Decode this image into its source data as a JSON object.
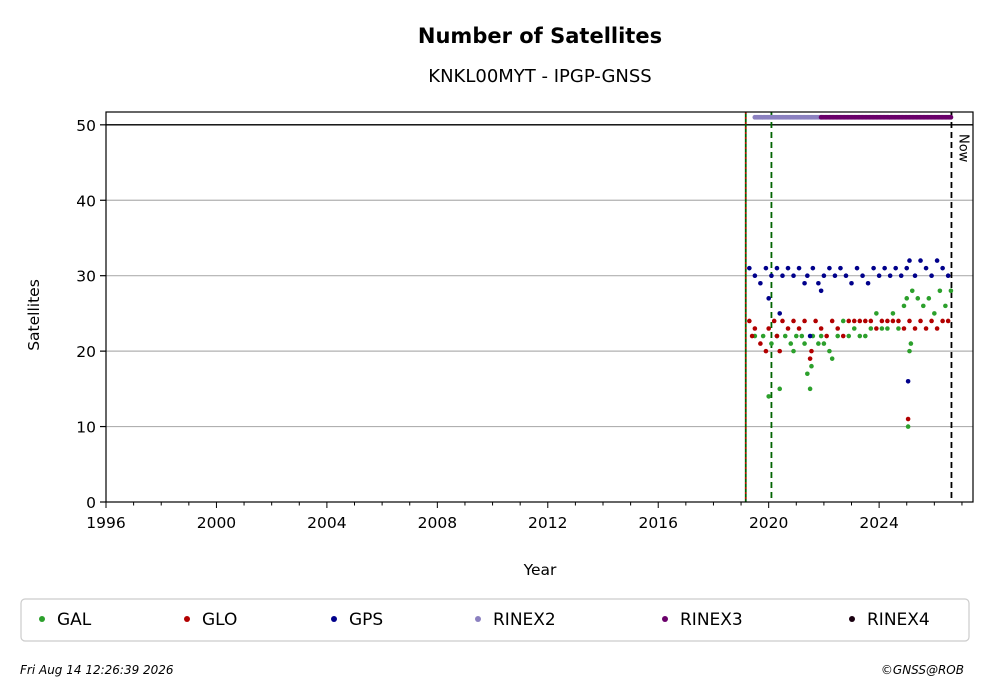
{
  "chart_data": {
    "type": "scatter",
    "title": "Number of Satellites",
    "subtitle": "KNKL00MYT - IPGP-GNSS",
    "xlabel": "Year",
    "ylabel": "Satellites",
    "xlim": [
      1996.0,
      2027.4
    ],
    "ylim": [
      0,
      51.7
    ],
    "x_ticks": [
      "1996",
      "2000",
      "2004",
      "2008",
      "2012",
      "2016",
      "2020",
      "2024"
    ],
    "y_ticks": [
      "0",
      "10",
      "20",
      "30",
      "40",
      "50"
    ],
    "grid": "horizontal",
    "legend_position": "bottom",
    "reference_line_y": 50,
    "vertical_lines": [
      {
        "x": 2019.17,
        "color": "#006400",
        "style": "solid"
      },
      {
        "x": 2019.17,
        "color": "#cc0000",
        "style": "dotted"
      },
      {
        "x": 2020.1,
        "color": "#006400",
        "style": "dashed"
      },
      {
        "x": 2026.62,
        "color": "#000000",
        "style": "dashed",
        "label": "Now"
      }
    ],
    "series": [
      {
        "name": "GAL",
        "color": "#2ca02c",
        "points": [
          [
            2019.5,
            22
          ],
          [
            2019.8,
            22
          ],
          [
            2020.0,
            14
          ],
          [
            2020.1,
            21
          ],
          [
            2020.3,
            22
          ],
          [
            2020.4,
            15
          ],
          [
            2020.6,
            22
          ],
          [
            2020.8,
            21
          ],
          [
            2020.9,
            20
          ],
          [
            2021.0,
            22
          ],
          [
            2021.2,
            22
          ],
          [
            2021.3,
            21
          ],
          [
            2021.4,
            17
          ],
          [
            2021.5,
            15
          ],
          [
            2021.55,
            18
          ],
          [
            2021.6,
            22
          ],
          [
            2021.8,
            21
          ],
          [
            2021.9,
            22
          ],
          [
            2022.0,
            21
          ],
          [
            2022.2,
            20
          ],
          [
            2022.3,
            19
          ],
          [
            2022.5,
            22
          ],
          [
            2022.7,
            24
          ],
          [
            2022.9,
            22
          ],
          [
            2023.1,
            23
          ],
          [
            2023.3,
            22
          ],
          [
            2023.5,
            22
          ],
          [
            2023.7,
            23
          ],
          [
            2023.9,
            25
          ],
          [
            2024.1,
            23
          ],
          [
            2024.3,
            23
          ],
          [
            2024.5,
            25
          ],
          [
            2024.7,
            23
          ],
          [
            2024.9,
            26
          ],
          [
            2025.0,
            27
          ],
          [
            2025.05,
            10
          ],
          [
            2025.1,
            20
          ],
          [
            2025.15,
            21
          ],
          [
            2025.2,
            28
          ],
          [
            2025.4,
            27
          ],
          [
            2025.6,
            26
          ],
          [
            2025.8,
            27
          ],
          [
            2026.0,
            25
          ],
          [
            2026.2,
            28
          ],
          [
            2026.4,
            26
          ],
          [
            2026.6,
            28
          ]
        ]
      },
      {
        "name": "GLO",
        "color": "#b20000",
        "points": [
          [
            2019.3,
            24
          ],
          [
            2019.4,
            22
          ],
          [
            2019.5,
            23
          ],
          [
            2019.7,
            21
          ],
          [
            2019.9,
            20
          ],
          [
            2020.0,
            23
          ],
          [
            2020.2,
            24
          ],
          [
            2020.3,
            22
          ],
          [
            2020.4,
            20
          ],
          [
            2020.5,
            24
          ],
          [
            2020.7,
            23
          ],
          [
            2020.9,
            24
          ],
          [
            2021.1,
            23
          ],
          [
            2021.3,
            24
          ],
          [
            2021.5,
            19
          ],
          [
            2021.55,
            20
          ],
          [
            2021.7,
            24
          ],
          [
            2021.9,
            23
          ],
          [
            2022.1,
            22
          ],
          [
            2022.3,
            24
          ],
          [
            2022.5,
            23
          ],
          [
            2022.7,
            22
          ],
          [
            2022.9,
            24
          ],
          [
            2023.1,
            24
          ],
          [
            2023.3,
            24
          ],
          [
            2023.5,
            24
          ],
          [
            2023.7,
            24
          ],
          [
            2023.9,
            23
          ],
          [
            2024.1,
            24
          ],
          [
            2024.3,
            24
          ],
          [
            2024.5,
            24
          ],
          [
            2024.7,
            24
          ],
          [
            2024.9,
            23
          ],
          [
            2025.05,
            11
          ],
          [
            2025.1,
            24
          ],
          [
            2025.3,
            23
          ],
          [
            2025.5,
            24
          ],
          [
            2025.7,
            23
          ],
          [
            2025.9,
            24
          ],
          [
            2026.1,
            23
          ],
          [
            2026.3,
            24
          ],
          [
            2026.5,
            24
          ]
        ]
      },
      {
        "name": "GPS",
        "color": "#00008b",
        "points": [
          [
            2019.3,
            31
          ],
          [
            2019.5,
            30
          ],
          [
            2019.7,
            29
          ],
          [
            2019.9,
            31
          ],
          [
            2020.0,
            27
          ],
          [
            2020.1,
            30
          ],
          [
            2020.3,
            31
          ],
          [
            2020.4,
            25
          ],
          [
            2020.5,
            30
          ],
          [
            2020.7,
            31
          ],
          [
            2020.9,
            30
          ],
          [
            2021.1,
            31
          ],
          [
            2021.3,
            29
          ],
          [
            2021.4,
            30
          ],
          [
            2021.5,
            22
          ],
          [
            2021.6,
            31
          ],
          [
            2021.8,
            29
          ],
          [
            2021.9,
            28
          ],
          [
            2022.0,
            30
          ],
          [
            2022.2,
            31
          ],
          [
            2022.4,
            30
          ],
          [
            2022.6,
            31
          ],
          [
            2022.8,
            30
          ],
          [
            2023.0,
            29
          ],
          [
            2023.2,
            31
          ],
          [
            2023.4,
            30
          ],
          [
            2023.6,
            29
          ],
          [
            2023.8,
            31
          ],
          [
            2024.0,
            30
          ],
          [
            2024.2,
            31
          ],
          [
            2024.4,
            30
          ],
          [
            2024.6,
            31
          ],
          [
            2024.8,
            30
          ],
          [
            2025.0,
            31
          ],
          [
            2025.05,
            16
          ],
          [
            2025.1,
            32
          ],
          [
            2025.3,
            30
          ],
          [
            2025.5,
            32
          ],
          [
            2025.7,
            31
          ],
          [
            2025.9,
            30
          ],
          [
            2026.1,
            32
          ],
          [
            2026.3,
            31
          ],
          [
            2026.5,
            30
          ]
        ]
      },
      {
        "name": "RINEX2",
        "color": "#8b80c0",
        "segment": [
          2019.5,
          2021.9
        ],
        "y": 51
      },
      {
        "name": "RINEX3",
        "color": "#6a006a",
        "segment": [
          2021.9,
          2026.62
        ],
        "y": 51
      },
      {
        "name": "RINEX4",
        "color": "#1a0010",
        "segment": null,
        "y": 51
      }
    ]
  },
  "footer": {
    "timestamp": "Fri Aug 14 12:26:39 2026",
    "credit": "©GNSS@ROB"
  },
  "now_label": "Now"
}
